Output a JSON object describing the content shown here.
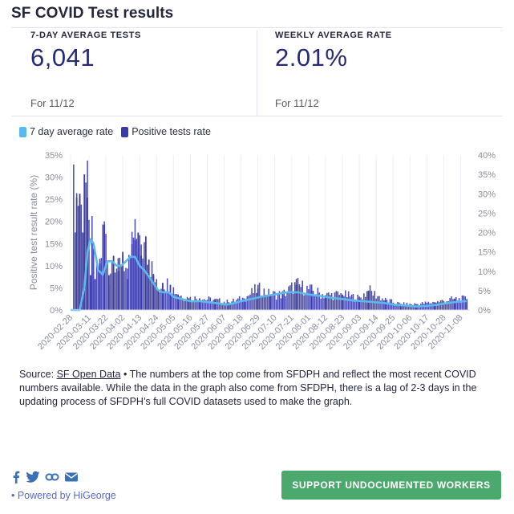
{
  "header": {
    "title": "SF COVID Test results"
  },
  "stats": [
    {
      "label": "7-DAY AVERAGE TESTS",
      "value": "6,041",
      "date": "For 11/12"
    },
    {
      "label": "WEEKLY AVERAGE RATE",
      "value": "2.01%",
      "date": "For 11/12"
    }
  ],
  "colors": {
    "line": "#5ab9ee",
    "bar": "#3a3aa8",
    "button": "#4ca96d",
    "accent": "#262a75"
  },
  "chart_data": {
    "type": "bar",
    "ylabel": "Positive test result rate (%)",
    "y_left_ticks": [
      "35%",
      "30%",
      "25%",
      "20%",
      "15%",
      "10%",
      "5%",
      "0%"
    ],
    "y_right_ticks": [
      "40%",
      "35%",
      "30%",
      "25%",
      "20%",
      "15%",
      "10%",
      "5%",
      "0%"
    ],
    "ylim_left": [
      0,
      35
    ],
    "ylim_right": [
      0,
      40
    ],
    "x_ticks": [
      "2020-02-28",
      "2020-03-11",
      "2020-03-22",
      "2020-04-02",
      "2020-04-13",
      "2020-04-24",
      "2020-05-05",
      "2020-05-16",
      "2020-05-27",
      "2020-06-07",
      "2020-06-18",
      "2020-06-29",
      "2020-07-10",
      "2020-07-21",
      "2020-08-01",
      "2020-08-12",
      "2020-08-23",
      "2020-09-03",
      "2020-09-14",
      "2020-09-25",
      "2020-10-06",
      "2020-10-17",
      "2020-10-28",
      "2020-11-08"
    ],
    "series": [
      {
        "name": "7 day average rate",
        "type": "line",
        "axis": "left",
        "points": [
          [
            "2020-02-28",
            0
          ],
          [
            "2020-03-05",
            0
          ],
          [
            "2020-03-08",
            5
          ],
          [
            "2020-03-10",
            13
          ],
          [
            "2020-03-12",
            16
          ],
          [
            "2020-03-14",
            15
          ],
          [
            "2020-03-17",
            9
          ],
          [
            "2020-03-20",
            8
          ],
          [
            "2020-03-23",
            11
          ],
          [
            "2020-03-26",
            11
          ],
          [
            "2020-03-29",
            10
          ],
          [
            "2020-04-01",
            10
          ],
          [
            "2020-04-04",
            11
          ],
          [
            "2020-04-07",
            12
          ],
          [
            "2020-04-10",
            12
          ],
          [
            "2020-04-13",
            10
          ],
          [
            "2020-04-16",
            9
          ],
          [
            "2020-04-19",
            7.5
          ],
          [
            "2020-04-22",
            6
          ],
          [
            "2020-04-25",
            4.5
          ],
          [
            "2020-04-28",
            4
          ],
          [
            "2020-05-02",
            4
          ],
          [
            "2020-05-05",
            3
          ],
          [
            "2020-05-10",
            2.5
          ],
          [
            "2020-05-16",
            2
          ],
          [
            "2020-05-22",
            2
          ],
          [
            "2020-05-27",
            1.8
          ],
          [
            "2020-06-03",
            1.5
          ],
          [
            "2020-06-08",
            1.2
          ],
          [
            "2020-06-12",
            1.4
          ],
          [
            "2020-06-18",
            2
          ],
          [
            "2020-06-25",
            2.5
          ],
          [
            "2020-07-01",
            3
          ],
          [
            "2020-07-10",
            3.5
          ],
          [
            "2020-07-18",
            4
          ],
          [
            "2020-07-25",
            4
          ],
          [
            "2020-08-01",
            3.5
          ],
          [
            "2020-08-08",
            3.2
          ],
          [
            "2020-08-15",
            2.8
          ],
          [
            "2020-08-22",
            2.5
          ],
          [
            "2020-08-29",
            2.2
          ],
          [
            "2020-09-05",
            2
          ],
          [
            "2020-09-12",
            1.8
          ],
          [
            "2020-09-19",
            1.6
          ],
          [
            "2020-09-26",
            1.2
          ],
          [
            "2020-10-03",
            1
          ],
          [
            "2020-10-10",
            0.8
          ],
          [
            "2020-10-17",
            0.9
          ],
          [
            "2020-10-24",
            1.2
          ],
          [
            "2020-10-31",
            1.6
          ],
          [
            "2020-11-07",
            1.9
          ],
          [
            "2020-11-12",
            2
          ]
        ]
      },
      {
        "name": "Positive tests rate",
        "type": "bar",
        "axis": "right",
        "points": [
          [
            "2020-03-03",
            29
          ],
          [
            "2020-03-05",
            30
          ],
          [
            "2020-03-07",
            20
          ],
          [
            "2020-03-08",
            35
          ],
          [
            "2020-03-10",
            29
          ],
          [
            "2020-03-12",
            9
          ],
          [
            "2020-03-13",
            18
          ],
          [
            "2020-03-15",
            8
          ],
          [
            "2020-03-18",
            12
          ],
          [
            "2020-03-21",
            22
          ],
          [
            "2020-03-24",
            9
          ],
          [
            "2020-03-27",
            14
          ],
          [
            "2020-03-30",
            10
          ],
          [
            "2020-04-02",
            15
          ],
          [
            "2020-04-05",
            8
          ],
          [
            "2020-04-08",
            17
          ],
          [
            "2020-04-10",
            18
          ],
          [
            "2020-04-12",
            20
          ],
          [
            "2020-04-14",
            14
          ],
          [
            "2020-04-17",
            19
          ],
          [
            "2020-04-19",
            13
          ],
          [
            "2020-04-22",
            9
          ],
          [
            "2020-04-25",
            5
          ],
          [
            "2020-04-28",
            7
          ],
          [
            "2020-05-03",
            6.5
          ],
          [
            "2020-05-08",
            4
          ],
          [
            "2020-05-15",
            3
          ],
          [
            "2020-05-22",
            3
          ],
          [
            "2020-06-01",
            2.5
          ],
          [
            "2020-06-10",
            2
          ],
          [
            "2020-06-20",
            3
          ],
          [
            "2020-06-29",
            5.5
          ],
          [
            "2020-07-07",
            4
          ],
          [
            "2020-07-15",
            4
          ],
          [
            "2020-07-24",
            6.5
          ],
          [
            "2020-08-03",
            5
          ],
          [
            "2020-08-12",
            3.8
          ],
          [
            "2020-08-23",
            4
          ],
          [
            "2020-09-03",
            3
          ],
          [
            "2020-09-09",
            5
          ],
          [
            "2020-09-20",
            2.5
          ],
          [
            "2020-09-30",
            1.5
          ],
          [
            "2020-10-10",
            1.5
          ],
          [
            "2020-10-22",
            2
          ],
          [
            "2020-11-04",
            2.8
          ],
          [
            "2020-11-12",
            2.8
          ]
        ]
      }
    ],
    "legend": "top-left",
    "grid": "vertical"
  },
  "source": {
    "prefix": "Source: ",
    "link_text": "SF Open Data",
    "body": " • The numbers at the top come from SFDPH and reflect the most recent COVID numbers available. While the data in the graph also come from SFDPH, there is a lag of 2-3 days in the updating process of SFDPH’s full COVID datasets used to make the graph."
  },
  "footer": {
    "powered_by": "• Powered by HiGeorge",
    "cta_label": "SUPPORT UNDOCUMENTED WORKERS",
    "social_icons": [
      "facebook-icon",
      "twitter-icon",
      "link-icon",
      "email-icon"
    ]
  }
}
